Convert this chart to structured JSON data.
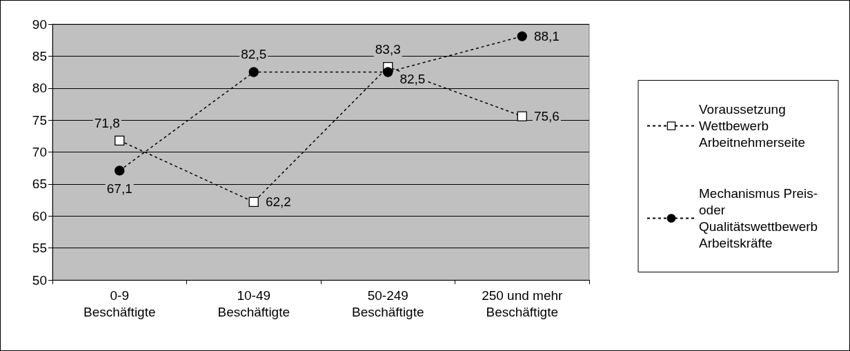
{
  "chart_data": {
    "type": "line",
    "categories": [
      "0-9\nBeschäftigte",
      "10-49\nBeschäftigte",
      "50-249\nBeschäftigte",
      "250 und mehr\nBeschäftigte"
    ],
    "series": [
      {
        "name": "Voraussetzung Wettbewerb Arbeitnehmerseite",
        "color": "#000000",
        "marker": "square",
        "values": [
          71.8,
          62.2,
          83.3,
          75.6
        ],
        "value_labels": [
          "71,8",
          "62,2",
          "83,3",
          "75,6"
        ]
      },
      {
        "name": "Mechanismus Preis- oder Qualitätswettbewerb Arbeitskräfte",
        "color": "#000000",
        "marker": "circle",
        "values": [
          67.1,
          82.5,
          82.5,
          88.1
        ],
        "value_labels": [
          "67,1",
          "82,5",
          "82,5",
          "88,1"
        ]
      }
    ],
    "ylim": [
      50,
      90
    ],
    "yticks": [
      50,
      55,
      60,
      65,
      70,
      75,
      80,
      85,
      90
    ],
    "grid": "y",
    "legend": "right",
    "line_style": "dotted"
  }
}
